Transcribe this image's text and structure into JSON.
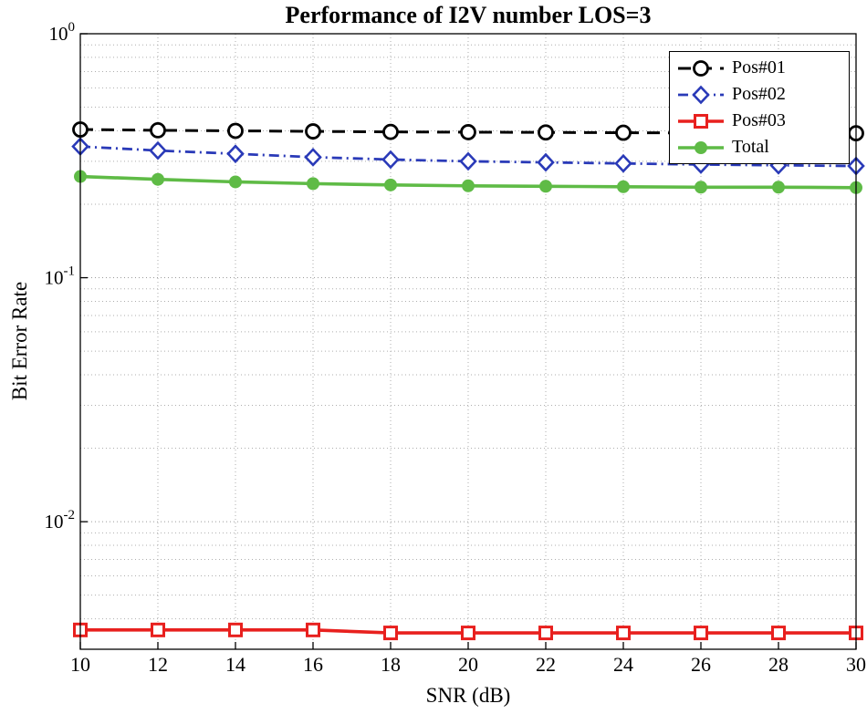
{
  "chart_data": {
    "type": "line",
    "title": "Performance of I2V number LOS=3",
    "xlabel": "SNR (dB)",
    "ylabel": "Bit Error Rate",
    "x_scale": "linear",
    "y_scale": "log",
    "xlim": [
      10,
      30
    ],
    "ylim": [
      0.003,
      1.0
    ],
    "x_ticks": [
      10,
      12,
      14,
      16,
      18,
      20,
      22,
      24,
      26,
      28,
      30
    ],
    "y_ticks": [
      1,
      0.1,
      0.01
    ],
    "y_tick_labels": [
      "10^0",
      "10^-1",
      "10^-2"
    ],
    "grid": "minor-dotted",
    "legend_position": "top-right",
    "x": [
      10,
      12,
      14,
      16,
      18,
      20,
      22,
      24,
      26,
      28,
      30
    ],
    "series": [
      {
        "name": "Pos#01",
        "color": "#000000",
        "line": "dashed",
        "marker": "circle-open",
        "values": [
          0.405,
          0.402,
          0.4,
          0.398,
          0.396,
          0.395,
          0.394,
          0.393,
          0.392,
          0.392,
          0.391
        ]
      },
      {
        "name": "Pos#02",
        "color": "#2a3ab8",
        "line": "dashdot",
        "marker": "diamond-open",
        "values": [
          0.345,
          0.332,
          0.322,
          0.312,
          0.305,
          0.3,
          0.297,
          0.294,
          0.291,
          0.289,
          0.287
        ]
      },
      {
        "name": "Pos#03",
        "color": "#e8201e",
        "line": "solid",
        "marker": "square-open",
        "values": [
          0.0036,
          0.0036,
          0.0036,
          0.0036,
          0.0035,
          0.0035,
          0.0035,
          0.0035,
          0.0035,
          0.0035,
          0.0035
        ]
      },
      {
        "name": "Total",
        "color": "#5fbb46",
        "line": "solid",
        "marker": "circle-filled",
        "values": [
          0.26,
          0.253,
          0.247,
          0.243,
          0.24,
          0.238,
          0.237,
          0.236,
          0.235,
          0.235,
          0.234
        ]
      }
    ]
  }
}
